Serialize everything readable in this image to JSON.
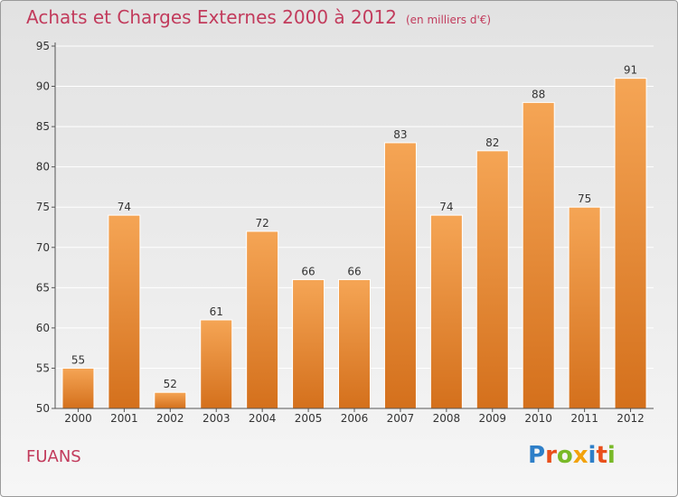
{
  "header": {
    "title": "Achats et Charges Externes 2000 à 2012",
    "subtitle": "(en milliers d'€)"
  },
  "footer": {
    "place": "FUANS",
    "brand": "Proxiti",
    "brand_colors": [
      "#2e7fc8",
      "#e94f1b",
      "#79b928",
      "#f2a20b",
      "#2e7fc8",
      "#e94f1b",
      "#79b928"
    ]
  },
  "colors": {
    "title": "#c23b5c",
    "bar_top": "#f5a555",
    "bar_bottom": "#d4701c",
    "bar_edge": "#ffffff",
    "grid": "#ffffff",
    "axis": "#555555"
  },
  "chart_data": {
    "type": "bar",
    "categories": [
      "2000",
      "2001",
      "2002",
      "2003",
      "2004",
      "2005",
      "2006",
      "2007",
      "2008",
      "2009",
      "2010",
      "2011",
      "2012"
    ],
    "values": [
      55,
      74,
      52,
      61,
      72,
      66,
      66,
      83,
      74,
      82,
      88,
      75,
      91
    ],
    "data_labels": [
      "55",
      "74",
      "52",
      "61",
      "72",
      "66",
      "66",
      "83",
      "74",
      "82",
      "88",
      "75",
      "91"
    ],
    "yticks": [
      "50",
      "55",
      "60",
      "65",
      "70",
      "75",
      "80",
      "85",
      "90",
      "95"
    ],
    "ylim": [
      50,
      95
    ],
    "grid": true,
    "legend": "none"
  }
}
